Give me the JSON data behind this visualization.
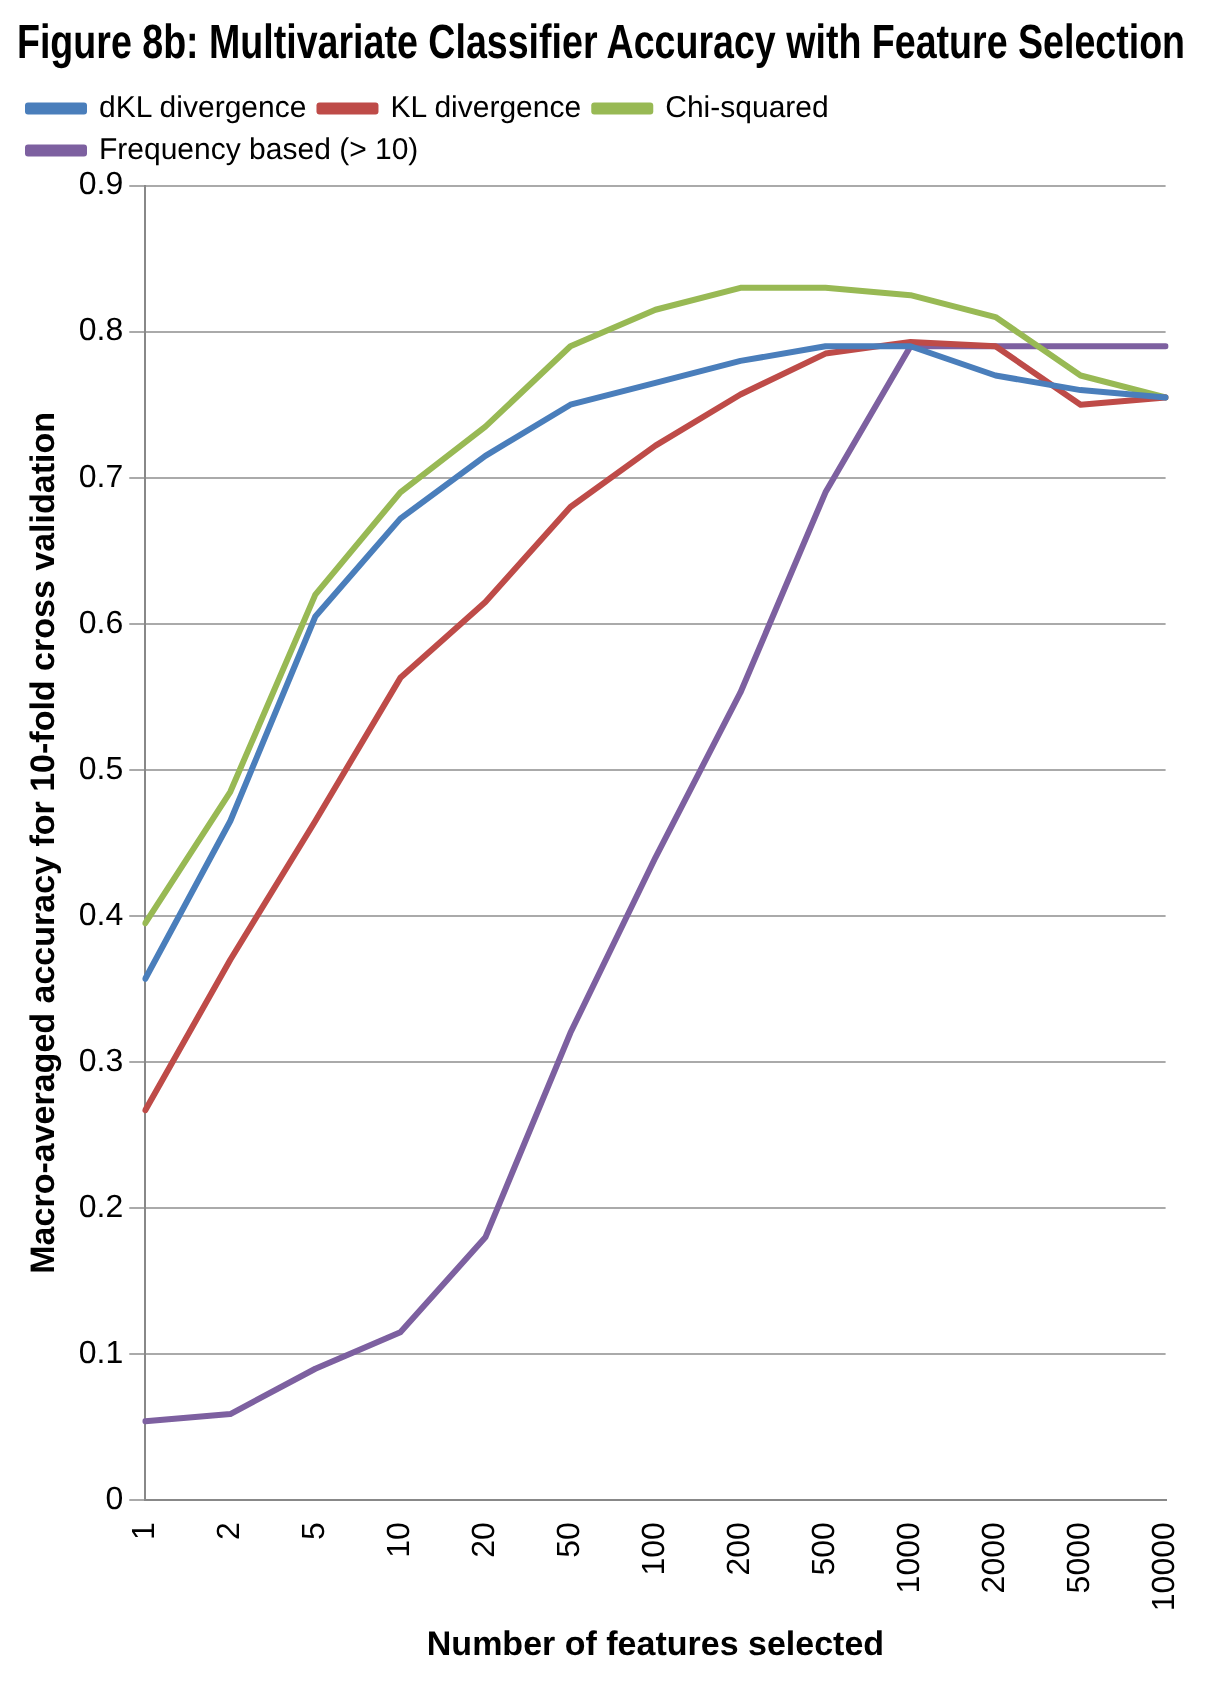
{
  "chart_data": {
    "type": "line",
    "title": "Figure 8b: Multivariate Classifier Accuracy with Feature Selection",
    "xlabel": "Number of features selected",
    "ylabel": "Macro-averaged accuracy for 10-fold cross validation",
    "categories": [
      "1",
      "2",
      "5",
      "10",
      "20",
      "50",
      "100",
      "200",
      "500",
      "1000",
      "2000",
      "5000",
      "10000"
    ],
    "series": [
      {
        "name": "dKL divergence",
        "color": "#4a7ebb",
        "values": [
          0.357,
          0.465,
          0.605,
          0.672,
          0.715,
          0.75,
          0.765,
          0.78,
          0.79,
          0.79,
          0.77,
          0.76,
          0.755
        ]
      },
      {
        "name": "KL divergence",
        "color": "#be4b48",
        "values": [
          0.267,
          0.37,
          0.465,
          0.563,
          0.615,
          0.68,
          0.722,
          0.757,
          0.785,
          0.793,
          0.79,
          0.75,
          0.755
        ]
      },
      {
        "name": "Chi-squared",
        "color": "#98b954",
        "values": [
          0.395,
          0.485,
          0.62,
          0.69,
          0.735,
          0.79,
          0.815,
          0.83,
          0.83,
          0.825,
          0.81,
          0.77,
          0.755
        ]
      },
      {
        "name": "Frequency based (> 10)",
        "color": "#7d60a0",
        "values": [
          0.054,
          0.059,
          0.09,
          0.115,
          0.18,
          0.32,
          0.44,
          0.553,
          0.69,
          0.79,
          0.79,
          0.79,
          0.79
        ]
      }
    ],
    "ylim": [
      0,
      0.9
    ],
    "yticks": [
      0,
      0.1,
      0.2,
      0.3,
      0.4,
      0.5,
      0.6,
      0.7,
      0.8,
      0.9
    ],
    "grid": "y",
    "legend": "top",
    "marker": "none",
    "line_style": "solid"
  }
}
